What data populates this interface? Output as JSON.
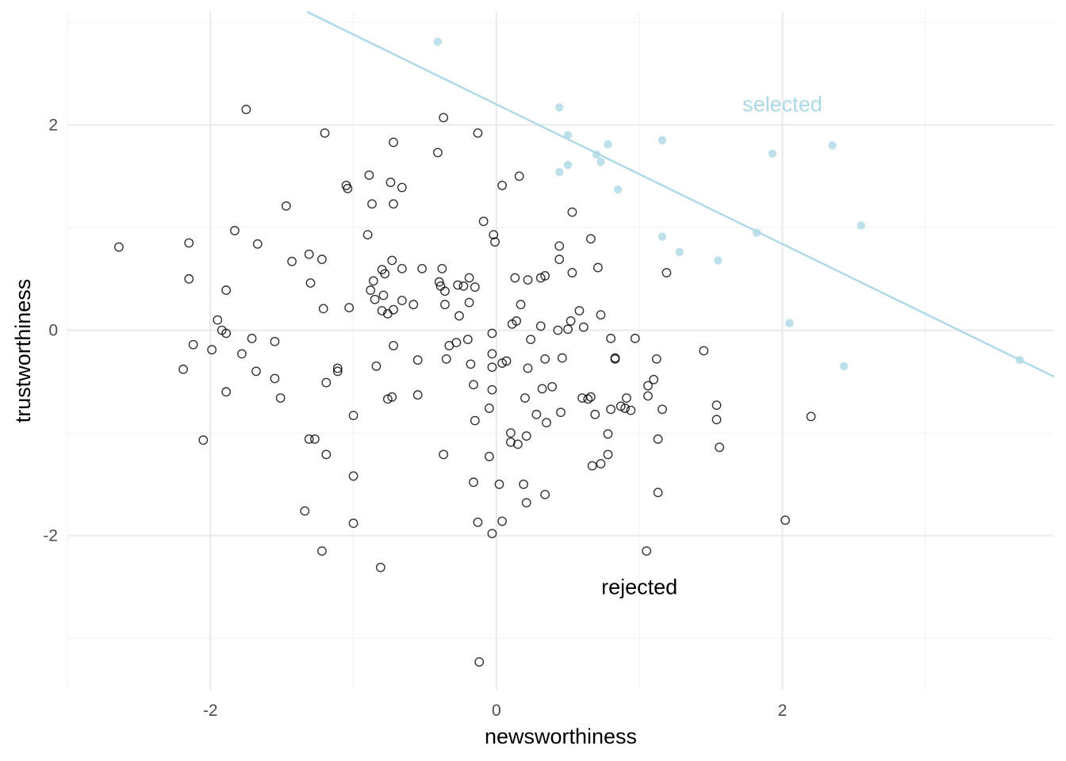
{
  "chart_data": {
    "type": "scatter",
    "xlabel": "newsworthiness",
    "ylabel": "trustworthiness",
    "xlim": [
      -3.0,
      3.9
    ],
    "ylim": [
      -3.5,
      3.1
    ],
    "x_ticks": [
      -2,
      0,
      2
    ],
    "y_ticks": [
      -2,
      0,
      2
    ],
    "x_tick_labels": [
      "-2",
      "0",
      "2"
    ],
    "y_tick_labels": [
      "-2",
      "0",
      "2"
    ],
    "grid": true,
    "colors": {
      "selected": "#add8e6",
      "rejected": "#000000"
    },
    "selection_line": {
      "intercept": 2.2,
      "slope": -0.68
    },
    "annotations": [
      {
        "text": "selected",
        "x": 2.0,
        "y": 2.2,
        "color": "#add8e6"
      },
      {
        "text": "rejected",
        "x": 1.0,
        "y": -2.5,
        "color": "#000000"
      }
    ],
    "series": [
      {
        "style": "filled",
        "points": [
          [
            -0.41,
            2.81
          ],
          [
            0.44,
            2.17
          ],
          [
            0.5,
            1.9
          ],
          [
            0.78,
            1.81
          ],
          [
            1.16,
            1.85
          ],
          [
            0.7,
            1.71
          ],
          [
            0.73,
            1.64
          ],
          [
            0.5,
            1.61
          ],
          [
            0.44,
            1.54
          ],
          [
            0.85,
            1.37
          ],
          [
            1.93,
            1.72
          ],
          [
            2.35,
            1.8
          ],
          [
            1.16,
            0.91
          ],
          [
            1.28,
            0.76
          ],
          [
            1.55,
            0.68
          ],
          [
            1.82,
            0.95
          ],
          [
            2.55,
            1.02
          ],
          [
            2.05,
            0.07
          ],
          [
            2.43,
            -0.35
          ],
          [
            3.66,
            -0.29
          ]
        ]
      },
      {
        "style": "hollow",
        "points": [
          [
            -2.64,
            0.81
          ],
          [
            -1.75,
            2.15
          ],
          [
            -1.2,
            1.92
          ],
          [
            -0.37,
            2.07
          ],
          [
            -0.13,
            1.92
          ],
          [
            -0.72,
            1.83
          ],
          [
            -0.41,
            1.73
          ],
          [
            -1.05,
            1.41
          ],
          [
            -1.04,
            1.38
          ],
          [
            -0.89,
            1.51
          ],
          [
            -0.74,
            1.44
          ],
          [
            -0.66,
            1.39
          ],
          [
            0.04,
            1.41
          ],
          [
            0.16,
            1.5
          ],
          [
            -0.87,
            1.23
          ],
          [
            -0.72,
            1.23
          ],
          [
            -1.47,
            1.21
          ],
          [
            -1.83,
            0.97
          ],
          [
            -2.15,
            0.85
          ],
          [
            -1.67,
            0.84
          ],
          [
            -0.9,
            0.93
          ],
          [
            -0.09,
            1.06
          ],
          [
            0.53,
            1.15
          ],
          [
            -0.02,
            0.93
          ],
          [
            -0.01,
            0.86
          ],
          [
            0.44,
            0.82
          ],
          [
            0.66,
            0.89
          ],
          [
            -1.22,
            0.69
          ],
          [
            -1.43,
            0.67
          ],
          [
            -1.31,
            0.74
          ],
          [
            -0.73,
            0.68
          ],
          [
            -0.8,
            0.59
          ],
          [
            -0.66,
            0.6
          ],
          [
            -0.78,
            0.55
          ],
          [
            -0.52,
            0.6
          ],
          [
            -0.38,
            0.6
          ],
          [
            -2.15,
            0.5
          ],
          [
            -1.3,
            0.46
          ],
          [
            -0.86,
            0.48
          ],
          [
            -0.4,
            0.47
          ],
          [
            -0.39,
            0.43
          ],
          [
            -0.27,
            0.44
          ],
          [
            -0.23,
            0.43
          ],
          [
            -0.19,
            0.51
          ],
          [
            -0.15,
            0.42
          ],
          [
            -0.36,
            0.38
          ],
          [
            -0.88,
            0.39
          ],
          [
            -0.79,
            0.34
          ],
          [
            -1.89,
            0.39
          ],
          [
            0.13,
            0.51
          ],
          [
            0.22,
            0.49
          ],
          [
            0.31,
            0.51
          ],
          [
            0.34,
            0.53
          ],
          [
            0.53,
            0.56
          ],
          [
            0.71,
            0.61
          ],
          [
            1.19,
            0.56
          ],
          [
            0.44,
            0.69
          ],
          [
            -0.85,
            0.3
          ],
          [
            -0.66,
            0.29
          ],
          [
            -0.58,
            0.25
          ],
          [
            -0.36,
            0.25
          ],
          [
            -0.19,
            0.27
          ],
          [
            0.17,
            0.25
          ],
          [
            -0.8,
            0.19
          ],
          [
            -0.72,
            0.2
          ],
          [
            -0.76,
            0.16
          ],
          [
            -1.21,
            0.21
          ],
          [
            -1.03,
            0.22
          ],
          [
            -0.26,
            0.14
          ],
          [
            0.58,
            0.19
          ],
          [
            0.73,
            0.15
          ],
          [
            -1.95,
            0.1
          ],
          [
            -1.92,
            0.0
          ],
          [
            -1.89,
            -0.03
          ],
          [
            0.11,
            0.06
          ],
          [
            0.14,
            0.09
          ],
          [
            0.31,
            0.04
          ],
          [
            0.52,
            0.09
          ],
          [
            0.43,
            0.0
          ],
          [
            0.5,
            0.01
          ],
          [
            0.61,
            0.03
          ],
          [
            -0.03,
            -0.03
          ],
          [
            0.24,
            -0.09
          ],
          [
            0.8,
            -0.08
          ],
          [
            0.97,
            -0.08
          ],
          [
            -2.12,
            -0.14
          ],
          [
            -1.99,
            -0.19
          ],
          [
            -1.71,
            -0.08
          ],
          [
            -1.78,
            -0.23
          ],
          [
            -1.55,
            -0.11
          ],
          [
            -0.72,
            -0.15
          ],
          [
            -0.28,
            -0.12
          ],
          [
            -0.33,
            -0.15
          ],
          [
            -0.2,
            -0.09
          ],
          [
            -0.35,
            -0.28
          ],
          [
            -0.55,
            -0.29
          ],
          [
            -0.03,
            -0.23
          ],
          [
            0.04,
            -0.32
          ],
          [
            0.07,
            -0.3
          ],
          [
            0.34,
            -0.28
          ],
          [
            0.46,
            -0.27
          ],
          [
            0.83,
            -0.27
          ],
          [
            0.83,
            -0.28
          ],
          [
            1.12,
            -0.28
          ],
          [
            1.45,
            -0.2
          ],
          [
            -2.19,
            -0.38
          ],
          [
            -1.68,
            -0.4
          ],
          [
            -1.55,
            -0.47
          ],
          [
            -1.11,
            -0.37
          ],
          [
            -1.11,
            -0.4
          ],
          [
            -0.84,
            -0.35
          ],
          [
            -0.18,
            -0.33
          ],
          [
            -0.03,
            -0.36
          ],
          [
            0.22,
            -0.37
          ],
          [
            -1.19,
            -0.51
          ],
          [
            -1.89,
            -0.6
          ],
          [
            -1.51,
            -0.66
          ],
          [
            -0.76,
            -0.67
          ],
          [
            -0.73,
            -0.65
          ],
          [
            -0.55,
            -0.63
          ],
          [
            -0.16,
            -0.53
          ],
          [
            -0.03,
            -0.58
          ],
          [
            0.32,
            -0.57
          ],
          [
            0.39,
            -0.55
          ],
          [
            0.2,
            -0.66
          ],
          [
            0.6,
            -0.66
          ],
          [
            0.64,
            -0.67
          ],
          [
            0.66,
            -0.65
          ],
          [
            0.91,
            -0.66
          ],
          [
            1.06,
            -0.54
          ],
          [
            1.1,
            -0.48
          ],
          [
            1.06,
            -0.64
          ],
          [
            -1.0,
            -0.83
          ],
          [
            -0.15,
            -0.88
          ],
          [
            -0.05,
            -0.76
          ],
          [
            0.28,
            -0.82
          ],
          [
            0.35,
            -0.9
          ],
          [
            0.45,
            -0.8
          ],
          [
            0.69,
            -0.82
          ],
          [
            0.8,
            -0.77
          ],
          [
            0.87,
            -0.74
          ],
          [
            0.9,
            -0.76
          ],
          [
            0.94,
            -0.78
          ],
          [
            1.16,
            -0.77
          ],
          [
            1.54,
            -0.73
          ],
          [
            1.54,
            -0.87
          ],
          [
            2.2,
            -0.84
          ],
          [
            -2.05,
            -1.07
          ],
          [
            -1.31,
            -1.06
          ],
          [
            -1.27,
            -1.06
          ],
          [
            -1.19,
            -1.21
          ],
          [
            -0.37,
            -1.21
          ],
          [
            -0.05,
            -1.23
          ],
          [
            0.1,
            -1.0
          ],
          [
            0.1,
            -1.09
          ],
          [
            0.15,
            -1.11
          ],
          [
            0.21,
            -1.03
          ],
          [
            0.78,
            -1.01
          ],
          [
            0.78,
            -1.21
          ],
          [
            0.67,
            -1.32
          ],
          [
            0.73,
            -1.3
          ],
          [
            1.13,
            -1.06
          ],
          [
            1.56,
            -1.14
          ],
          [
            -1.0,
            -1.42
          ],
          [
            -0.16,
            -1.48
          ],
          [
            0.02,
            -1.5
          ],
          [
            0.19,
            -1.5
          ],
          [
            0.34,
            -1.6
          ],
          [
            0.21,
            -1.68
          ],
          [
            1.13,
            -1.58
          ],
          [
            -1.34,
            -1.76
          ],
          [
            -1.22,
            -2.15
          ],
          [
            -1.0,
            -1.88
          ],
          [
            -0.13,
            -1.87
          ],
          [
            0.04,
            -1.86
          ],
          [
            -0.03,
            -1.98
          ],
          [
            1.05,
            -2.15
          ],
          [
            2.02,
            -1.85
          ],
          [
            -0.81,
            -2.31
          ],
          [
            -0.12,
            -3.23
          ]
        ]
      }
    ]
  }
}
